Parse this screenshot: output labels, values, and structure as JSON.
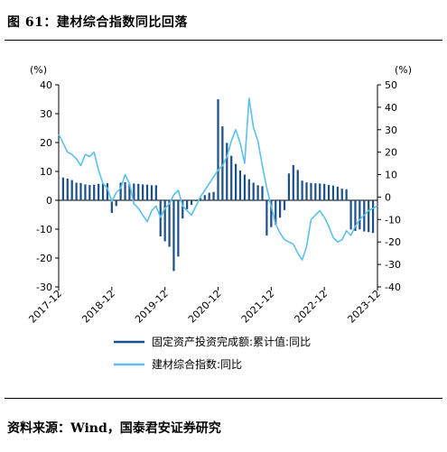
{
  "title": "图 61：建材综合指数同比回落",
  "source": "资料来源：Wind，国泰君安证券研究",
  "colors": {
    "bar": "#1B4F8A",
    "line": "#5BC0EB"
  },
  "chart_data": {
    "type": "bar",
    "left_unit": "(%)",
    "right_unit": "(%)",
    "left_axis": {
      "min": -30,
      "max": 40,
      "ticks": [
        40,
        30,
        20,
        10,
        0,
        -10,
        -20,
        -30
      ]
    },
    "right_axis": {
      "min": -40,
      "max": 50,
      "ticks": [
        50,
        40,
        30,
        20,
        10,
        0,
        -10,
        -20,
        -30,
        -40
      ]
    },
    "x_range": [
      2017.917,
      2023.917
    ],
    "x_tick_values": [
      2017.917,
      2018.917,
      2019.917,
      2020.917,
      2021.917,
      2022.917,
      2023.917
    ],
    "x_tick_labels": [
      "2017-12",
      "2018-12",
      "2019-12",
      "2020-12",
      "2021-12",
      "2022-12",
      "2023-12"
    ],
    "series": [
      {
        "name": "固定资产投资完成额:累计值:同比",
        "axis": "left",
        "kind": "bar",
        "x": [
          2018.0,
          2018.083,
          2018.167,
          2018.25,
          2018.333,
          2018.417,
          2018.5,
          2018.583,
          2018.667,
          2018.75,
          2018.833,
          2018.917,
          2019.0,
          2019.083,
          2019.167,
          2019.25,
          2019.333,
          2019.417,
          2019.5,
          2019.583,
          2019.667,
          2019.75,
          2019.833,
          2019.917,
          2020.0,
          2020.083,
          2020.167,
          2020.25,
          2020.333,
          2020.417,
          2020.5,
          2020.583,
          2020.667,
          2020.75,
          2020.833,
          2020.917,
          2021.0,
          2021.083,
          2021.167,
          2021.25,
          2021.333,
          2021.417,
          2021.5,
          2021.583,
          2021.667,
          2021.75,
          2021.833,
          2021.917,
          2022.0,
          2022.083,
          2022.167,
          2022.25,
          2022.333,
          2022.417,
          2022.5,
          2022.583,
          2022.667,
          2022.75,
          2022.833,
          2022.917,
          2023.0,
          2023.083,
          2023.167,
          2023.25,
          2023.333,
          2023.417,
          2023.5,
          2023.583,
          2023.667,
          2023.75,
          2023.833
        ],
        "values": [
          7.9,
          7.5,
          7.0,
          6.1,
          6.0,
          5.5,
          5.3,
          5.4,
          5.7,
          5.9,
          5.9,
          -4.4,
          -2.0,
          6.1,
          6.3,
          5.6,
          5.8,
          5.7,
          5.5,
          5.4,
          5.2,
          5.2,
          -12.5,
          -14.2,
          -16.1,
          -24.5,
          -19.5,
          -6.3,
          -3.1,
          -1.6,
          -0.3,
          0.8,
          1.8,
          2.6,
          2.9,
          35.0,
          25.6,
          19.9,
          15.4,
          12.6,
          10.3,
          8.9,
          7.3,
          6.1,
          5.2,
          4.9,
          -12.2,
          -9.3,
          -8.5,
          -6.0,
          -3.4,
          9.3,
          12.2,
          10.5,
          6.8,
          6.2,
          6.0,
          5.9,
          5.8,
          5.7,
          5.3,
          5.1,
          4.7,
          4.0,
          3.8,
          -10.1,
          -10.6,
          -10.1,
          -10.8,
          -11.0,
          -11.3
        ],
        "note": "monthly cumulative YoY, 2018-01 to 2023-11"
      },
      {
        "name": "建材综合指数:同比",
        "axis": "right",
        "kind": "line",
        "x": [
          2017.917,
          2018.0,
          2018.083,
          2018.167,
          2018.25,
          2018.333,
          2018.417,
          2018.5,
          2018.583,
          2018.667,
          2018.75,
          2018.833,
          2018.917,
          2019.0,
          2019.083,
          2019.167,
          2019.25,
          2019.333,
          2019.417,
          2019.5,
          2019.583,
          2019.667,
          2019.75,
          2019.833,
          2019.917,
          2020.0,
          2020.083,
          2020.167,
          2020.25,
          2020.333,
          2020.417,
          2020.5,
          2020.583,
          2020.667,
          2020.75,
          2020.833,
          2020.917,
          2021.0,
          2021.083,
          2021.167,
          2021.25,
          2021.333,
          2021.417,
          2021.5,
          2021.583,
          2021.667,
          2021.75,
          2021.833,
          2021.917,
          2022.0,
          2022.083,
          2022.167,
          2022.25,
          2022.333,
          2022.417,
          2022.5,
          2022.583,
          2022.667,
          2022.75,
          2022.833,
          2022.917,
          2023.0,
          2023.083,
          2023.167,
          2023.25,
          2023.333,
          2023.417,
          2023.5,
          2023.583,
          2023.667,
          2023.75,
          2023.833,
          2023.917
        ],
        "values": [
          28,
          24,
          20,
          19,
          17,
          14,
          19,
          18,
          20,
          12,
          6,
          4,
          -2,
          2,
          4,
          10,
          6,
          -3,
          -5,
          -8,
          -11,
          -6,
          -4,
          -9,
          -5,
          -3,
          1,
          3,
          -4,
          -6,
          -8,
          -4,
          0,
          3,
          6,
          9,
          12,
          14,
          18,
          25,
          30,
          24,
          15,
          44,
          31,
          25,
          14,
          4,
          -4,
          -12,
          -16,
          -19,
          -20,
          -21,
          -25,
          -28,
          -22,
          -10,
          -8,
          -6,
          -9,
          -13,
          -18,
          -20,
          -19,
          -15,
          -17,
          -13,
          -10,
          -8,
          -6,
          -5,
          -4
        ],
        "note": "monthly YoY, approximate"
      }
    ],
    "grid": false,
    "legend_position": "bottom-center"
  }
}
